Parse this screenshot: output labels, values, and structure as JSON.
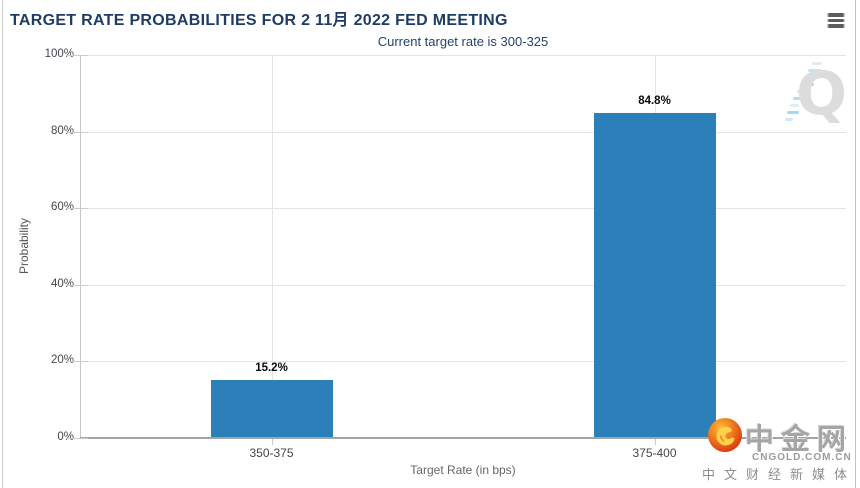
{
  "chart_data": {
    "type": "bar",
    "title": "TARGET RATE PROBABILITIES FOR 2 11月 2022 FED MEETING",
    "subtitle": "Current target rate is 300-325",
    "categories": [
      "350-375",
      "375-400"
    ],
    "values": [
      15.2,
      84.8
    ],
    "value_labels": [
      "15.2%",
      "84.8%"
    ],
    "xlabel": "Target Rate (in bps)",
    "ylabel": "Probability",
    "ylim": [
      0,
      100
    ],
    "yticks": [
      0,
      20,
      40,
      60,
      80,
      100
    ],
    "ytick_labels": [
      "0%",
      "20%",
      "40%",
      "60%",
      "80%",
      "100%"
    ],
    "grid": true,
    "legend": "none",
    "bar_color": "#2b80b9"
  },
  "header": {
    "menu_icon": "hamburger-icon"
  },
  "watermark": {
    "letter": "Q"
  },
  "logo": {
    "name": "中金网",
    "domain": "CNGOLD.COM.CN",
    "tagline": "中文财经新媒体",
    "circle_color": "#e23b10",
    "swirl_color": "#ffd24a"
  },
  "colors": {
    "title_text": "#1e3c66",
    "bar_fill": "#2b80b9",
    "gridline": "#e4e4e4",
    "axis_line": "#a3a3a3",
    "watermark_gray": "#dcdcdc",
    "watermark_blue": "#a8d8ef"
  }
}
